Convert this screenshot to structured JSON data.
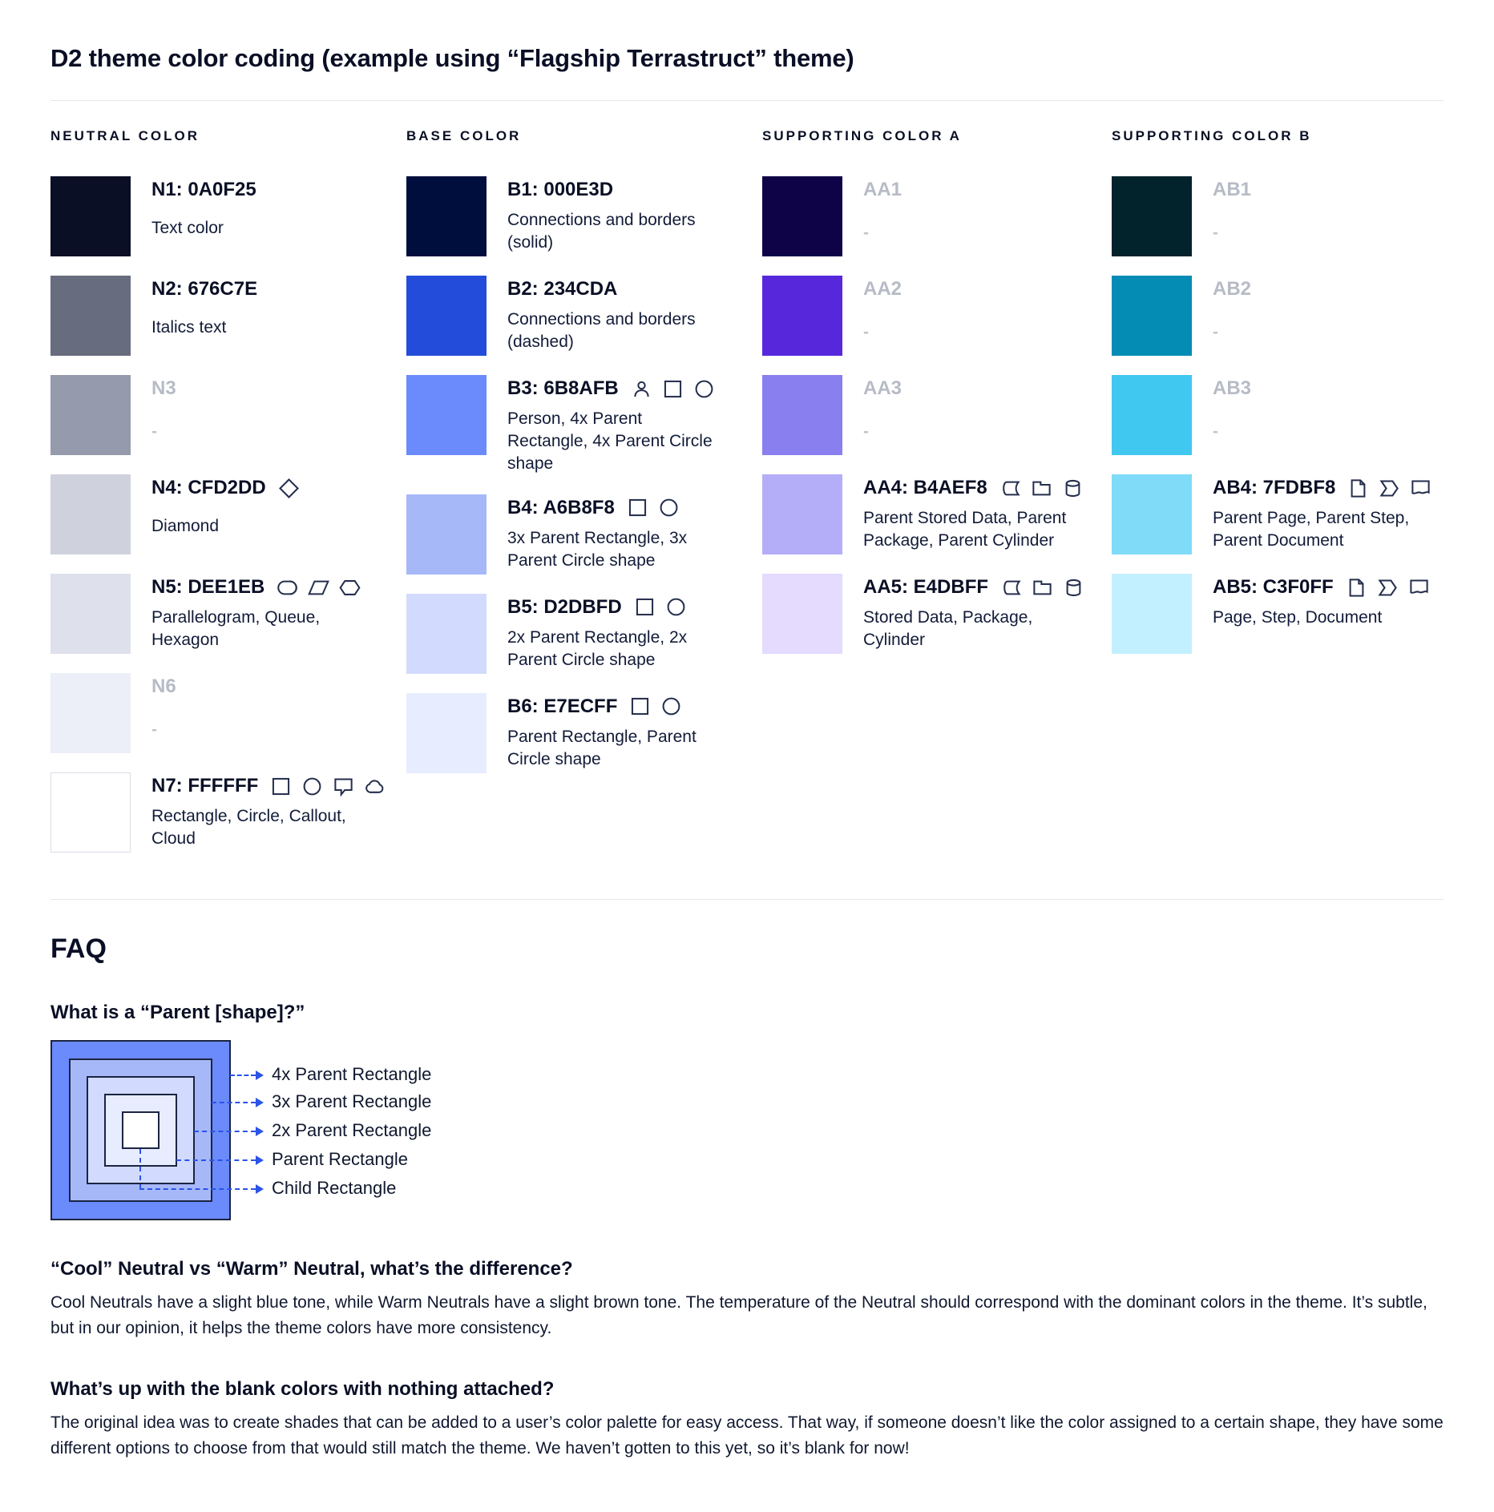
{
  "page": {
    "title": "D2 theme color coding (example using “Flagship Terrastruct” theme)"
  },
  "theme": {
    "text_color": "#0A0F25",
    "muted_label_color": "#B7BBC6",
    "divider_color": "#E4E7EE",
    "diagram_line_color": "#2B53E8",
    "icon_color": "#252E4D"
  },
  "columns": [
    {
      "header": "NEUTRAL COLOR",
      "rows": [
        {
          "label": "N1: 0A0F25",
          "color": "#0A0F25",
          "desc": "Text color",
          "empty": false,
          "bordered": false,
          "icons": []
        },
        {
          "label": "N2: 676C7E",
          "color": "#676C7E",
          "desc": "Italics text",
          "empty": false,
          "bordered": false,
          "icons": []
        },
        {
          "label": "N3",
          "color": "#959BAC",
          "desc": "-",
          "empty": true,
          "bordered": false,
          "icons": []
        },
        {
          "label": "N4: CFD2DD",
          "color": "#CFD2DD",
          "desc": "Diamond",
          "empty": false,
          "bordered": false,
          "icons": [
            "diamond"
          ]
        },
        {
          "label": "N5: DEE1EB",
          "color": "#DEE1EB",
          "desc": "Parallelogram, Queue, Hexagon",
          "empty": false,
          "bordered": false,
          "icons": [
            "queue",
            "parallelogram",
            "hexagon"
          ]
        },
        {
          "label": "N6",
          "color": "#ECEFF8",
          "desc": "-",
          "empty": true,
          "bordered": false,
          "icons": []
        },
        {
          "label": "N7: FFFFFF",
          "color": "#FFFFFF",
          "desc": "Rectangle, Circle, Callout, Cloud",
          "empty": false,
          "bordered": true,
          "icons": [
            "rectangle",
            "circle",
            "callout",
            "cloud"
          ]
        }
      ]
    },
    {
      "header": "BASE COLOR",
      "rows": [
        {
          "label": "B1: 000E3D",
          "color": "#000E3D",
          "desc": "Connections and borders (solid)",
          "empty": false,
          "bordered": false,
          "icons": []
        },
        {
          "label": "B2: 234CDA",
          "color": "#234CDA",
          "desc": "Connections and borders (dashed)",
          "empty": false,
          "bordered": false,
          "icons": []
        },
        {
          "label": "B3: 6B8AFB",
          "color": "#6B8AFB",
          "desc": "Person, 4x Parent Rectangle, 4x Parent Circle shape",
          "empty": false,
          "bordered": false,
          "icons": [
            "person",
            "rectangle",
            "circle"
          ]
        },
        {
          "label": "B4: A6B8F8",
          "color": "#A6B8F8",
          "desc": "3x Parent Rectangle, 3x Parent Circle shape",
          "empty": false,
          "bordered": false,
          "icons": [
            "rectangle",
            "circle"
          ]
        },
        {
          "label": "B5: D2DBFD",
          "color": "#D2DBFD",
          "desc": "2x Parent Rectangle, 2x Parent Circle shape",
          "empty": false,
          "bordered": false,
          "icons": [
            "rectangle",
            "circle"
          ]
        },
        {
          "label": "B6: E7ECFF",
          "color": "#E7ECFF",
          "desc": "Parent Rectangle, Parent Circle shape",
          "empty": false,
          "bordered": false,
          "icons": [
            "rectangle",
            "circle"
          ]
        }
      ]
    },
    {
      "header": "SUPPORTING COLOR A",
      "rows": [
        {
          "label": "AA1",
          "color": "#0E0347",
          "desc": "-",
          "empty": true,
          "bordered": false,
          "icons": []
        },
        {
          "label": "AA2",
          "color": "#5727DC",
          "desc": "-",
          "empty": true,
          "bordered": false,
          "icons": []
        },
        {
          "label": "AA3",
          "color": "#897FEE",
          "desc": "-",
          "empty": true,
          "bordered": false,
          "icons": []
        },
        {
          "label": "AA4: B4AEF8",
          "color": "#B4AEF8",
          "desc": "Parent Stored Data, Parent Package,  Parent Cylinder",
          "empty": false,
          "bordered": false,
          "icons": [
            "stored-data",
            "package",
            "cylinder"
          ]
        },
        {
          "label": "AA5: E4DBFF",
          "color": "#E4DBFF",
          "desc": "Stored Data, Package, Cylinder",
          "empty": false,
          "bordered": false,
          "icons": [
            "stored-data",
            "package",
            "cylinder"
          ]
        }
      ]
    },
    {
      "header": "SUPPORTING COLOR B",
      "rows": [
        {
          "label": "AB1",
          "color": "#02222C",
          "desc": "-",
          "empty": true,
          "bordered": false,
          "icons": []
        },
        {
          "label": "AB2",
          "color": "#048CB4",
          "desc": "-",
          "empty": true,
          "bordered": false,
          "icons": []
        },
        {
          "label": "AB3",
          "color": "#40C8F0",
          "desc": "-",
          "empty": true,
          "bordered": false,
          "icons": []
        },
        {
          "label": "AB4: 7FDBF8",
          "color": "#7FDBF8",
          "desc": "Parent Page, Parent Step, Parent Document",
          "empty": false,
          "bordered": false,
          "icons": [
            "page",
            "step",
            "document"
          ]
        },
        {
          "label": "AB5: C3F0FF",
          "color": "#C3F0FF",
          "desc": "Page, Step, Document",
          "empty": false,
          "bordered": false,
          "icons": [
            "page",
            "step",
            "document"
          ]
        }
      ]
    }
  ],
  "faq": {
    "heading": "FAQ",
    "q1": "What is a “Parent [shape]?”",
    "diagram": {
      "labels": [
        "4x Parent Rectangle",
        "3x Parent Rectangle",
        "2x Parent Rectangle",
        "Parent Rectangle",
        "Child Rectangle"
      ],
      "fills": [
        "#6B8AFB",
        "#A6B8F8",
        "#D2DBFD",
        "#E7ECFF",
        "#FFFFFF"
      ],
      "line_color": "#2B53E8"
    },
    "q2": "“Cool” Neutral vs “Warm” Neutral, what’s the difference?",
    "a2": "Cool Neutrals have a slight blue tone, while Warm Neutrals have a slight brown tone. The temperature of the Neutral should correspond with the dominant colors in the theme. It’s subtle, but in our opinion, it helps the theme colors have more consistency.",
    "q3": "What’s up with the blank colors with nothing attached?",
    "a3": "The original idea was to create shades that can be added to a user’s color palette for easy access. That way, if someone doesn’t like the color assigned to a certain shape, they have some different options to choose from that would still match the theme. We haven’t gotten to this yet, so it’s blank for now!"
  }
}
